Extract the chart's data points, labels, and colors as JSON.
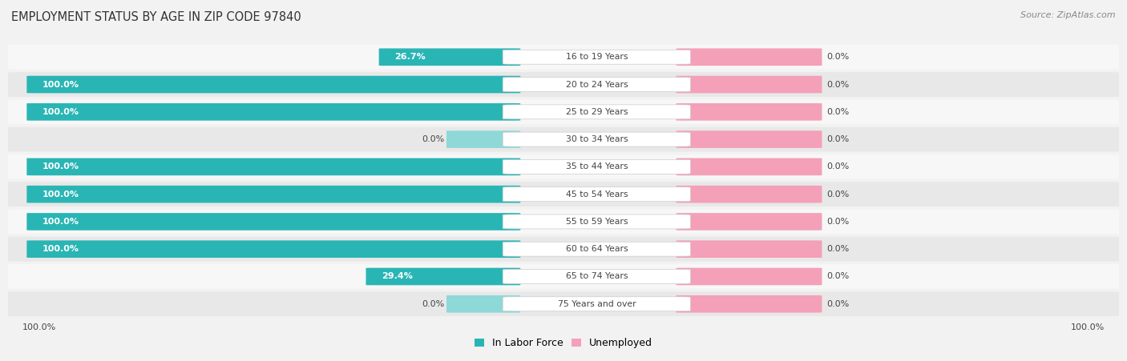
{
  "title": "EMPLOYMENT STATUS BY AGE IN ZIP CODE 97840",
  "source": "Source: ZipAtlas.com",
  "categories": [
    "16 to 19 Years",
    "20 to 24 Years",
    "25 to 29 Years",
    "30 to 34 Years",
    "35 to 44 Years",
    "45 to 54 Years",
    "55 to 59 Years",
    "60 to 64 Years",
    "65 to 74 Years",
    "75 Years and over"
  ],
  "in_labor_force": [
    26.7,
    100.0,
    100.0,
    0.0,
    100.0,
    100.0,
    100.0,
    100.0,
    29.4,
    0.0
  ],
  "unemployed": [
    0.0,
    0.0,
    0.0,
    0.0,
    0.0,
    0.0,
    0.0,
    0.0,
    0.0,
    0.0
  ],
  "labor_color": "#2ab5b5",
  "labor_color_light": "#8fd8d8",
  "unemployed_color": "#f4a0b8",
  "row_bg_light": "#f7f7f7",
  "row_bg_dark": "#e8e8e8",
  "label_color_white": "#ffffff",
  "label_color_dark": "#444444",
  "title_color": "#333333",
  "source_color": "#888888",
  "axis_label_left": "100.0%",
  "axis_label_right": "100.0%",
  "legend_labor": "In Labor Force",
  "legend_unemployed": "Unemployed",
  "max_value": 100.0,
  "fig_bg": "#f2f2f2"
}
